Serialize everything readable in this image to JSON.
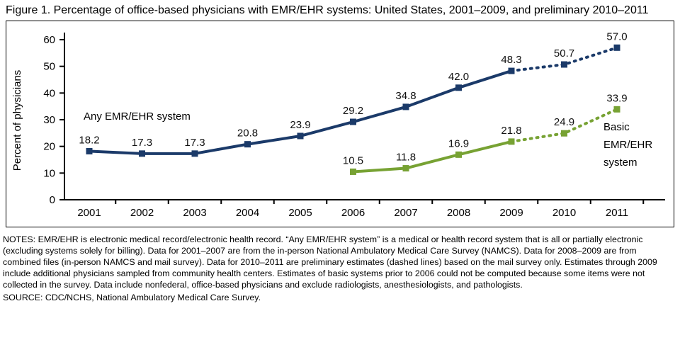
{
  "title": "Figure 1. Percentage of office-based physicians with EMR/EHR systems: United States, 2001–2009, and preliminary 2010–2011",
  "chart_data": {
    "type": "line",
    "categories": [
      "2001",
      "2002",
      "2003",
      "2004",
      "2005",
      "2006",
      "2007",
      "2008",
      "2009",
      "2010",
      "2011"
    ],
    "series": [
      {
        "name": "Any EMR/EHR system",
        "color": "#1b3a69",
        "values": [
          18.2,
          17.3,
          17.3,
          20.8,
          23.9,
          29.2,
          34.8,
          42.0,
          48.3,
          50.7,
          57.0
        ],
        "dashed_from_index": 8,
        "annotation_lines": [
          "Any EMR/EHR system"
        ]
      },
      {
        "name": "Basic EMR/EHR system",
        "color": "#77a233",
        "values": [
          null,
          null,
          null,
          null,
          null,
          10.5,
          11.8,
          16.9,
          21.8,
          24.9,
          33.9
        ],
        "dashed_from_index": 8,
        "annotation_lines": [
          "Basic",
          "EMR/EHR",
          "system"
        ]
      }
    ],
    "ylabel": "Percent of physicians",
    "xlabel": "",
    "ylim": [
      0,
      60
    ],
    "yticks": [
      0,
      10,
      20,
      30,
      40,
      50,
      60
    ],
    "grid": false,
    "legend_position": "inline-annotations",
    "dashed_meaning": "preliminary estimates 2010–2011",
    "label_color": "#111111"
  },
  "notes": "NOTES: EMR/EHR is electronic medical record/electronic health record. “Any EMR/EHR system” is a medical or health record system that is all or partially electronic (excluding systems solely for billing). Data for 2001–2007 are from the in-person National Ambulatory Medical Care Survey (NAMCS). Data for 2008–2009 are from combined files (in-person NAMCS and mail survey). Data for 2010–2011 are preliminary estimates (dashed lines) based on the mail survey only. Estimates through 2009 include additional physicians sampled from community health centers. Estimates of basic systems prior to 2006 could not be computed because some items were not collected in the survey. Data include nonfederal, office-based physicians and exclude radiologists, anesthesiologists, and pathologists.",
  "source": "SOURCE: CDC/NCHS, National Ambulatory Medical Care Survey."
}
